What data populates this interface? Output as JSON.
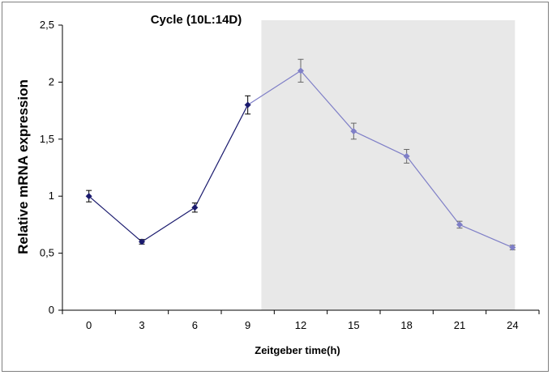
{
  "chart_data": {
    "type": "line",
    "title": "Cycle (10L:14D)",
    "xlabel": "Zeitgeber time(h)",
    "ylabel": "Relative mRNA expression",
    "x": [
      0,
      3,
      6,
      9,
      12,
      15,
      18,
      21,
      24
    ],
    "x_tick_labels": [
      "0",
      "3",
      "6",
      "9",
      "12",
      "15",
      "18",
      "21",
      "24"
    ],
    "y_ticks": [
      0,
      0.5,
      1,
      1.5,
      2,
      2.5
    ],
    "y_tick_labels": [
      "0",
      "0,5",
      "1",
      "1,5",
      "2",
      "2,5"
    ],
    "ylim": [
      0,
      2.5
    ],
    "dark_period": [
      10,
      24
    ],
    "series": [
      {
        "values": [
          1.0,
          0.6,
          0.9,
          1.8,
          2.1,
          1.57,
          1.35,
          0.75,
          0.55
        ],
        "errors": [
          0.05,
          0.02,
          0.04,
          0.08,
          0.1,
          0.07,
          0.06,
          0.03,
          0.02
        ]
      }
    ],
    "colors": {
      "light_phase_series": "#1a1a6e",
      "dark_phase_series": "#7f7fc7",
      "dark_period_shading": "#e8e8e8",
      "light_phase_errorbar": "#000000",
      "dark_phase_errorbar": "#666666"
    },
    "grid": false
  }
}
